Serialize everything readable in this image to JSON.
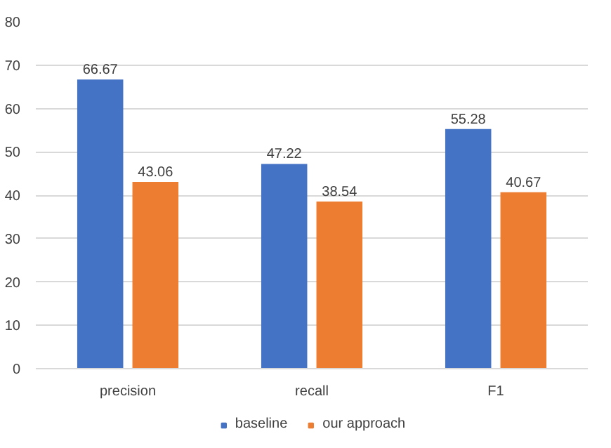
{
  "chart_data": {
    "type": "bar",
    "categories": [
      "precision",
      "recall",
      "F1"
    ],
    "series": [
      {
        "name": "baseline",
        "color": "#4472c4",
        "values": [
          66.67,
          47.22,
          55.28
        ]
      },
      {
        "name": "our approach",
        "color": "#ed7d31",
        "values": [
          43.06,
          38.54,
          40.67
        ]
      }
    ],
    "ylim": [
      0,
      80
    ],
    "yticks": [
      0,
      10,
      20,
      30,
      40,
      50,
      60,
      70,
      80
    ],
    "grid": "y",
    "legend": "bottom",
    "data_labels": true
  }
}
